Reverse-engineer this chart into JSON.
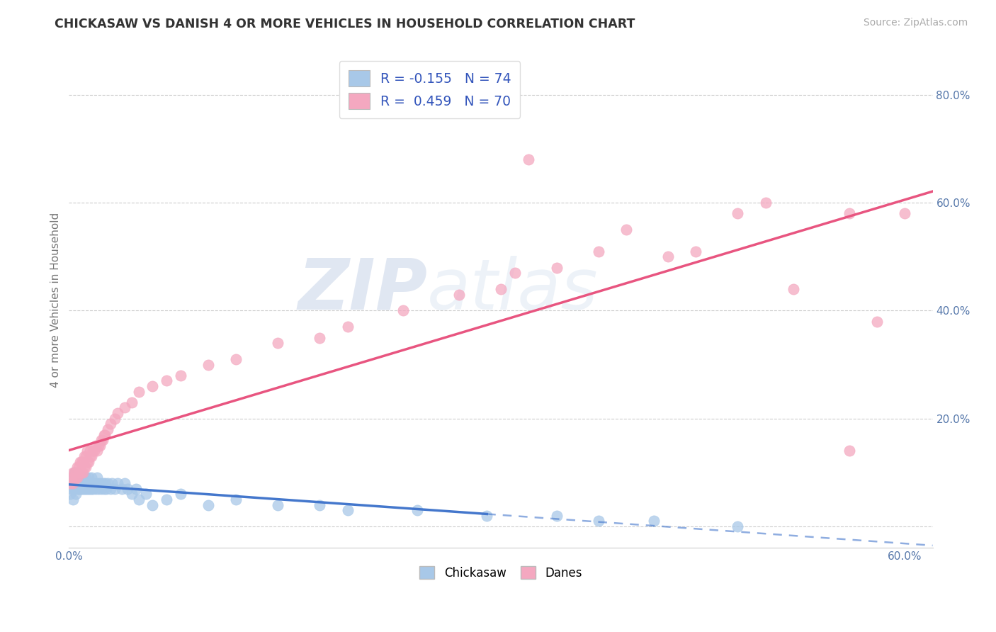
{
  "title": "CHICKASAW VS DANISH 4 OR MORE VEHICLES IN HOUSEHOLD CORRELATION CHART",
  "source": "Source: ZipAtlas.com",
  "ylabel": "4 or more Vehicles in Household",
  "xlim": [
    0.0,
    0.62
  ],
  "ylim": [
    -0.04,
    0.88
  ],
  "color_chickasaw": "#a8c8e8",
  "color_danes": "#f4a8c0",
  "line_color_chickasaw": "#4477cc",
  "line_color_danes": "#e85580",
  "watermark_zip": "ZIP",
  "watermark_atlas": "atlas",
  "background_color": "#ffffff",
  "r_chick": -0.155,
  "n_chick": 74,
  "r_danes": 0.459,
  "n_danes": 70,
  "chickasaw_x": [
    0.001,
    0.002,
    0.003,
    0.003,
    0.003,
    0.004,
    0.004,
    0.004,
    0.005,
    0.005,
    0.006,
    0.006,
    0.006,
    0.007,
    0.007,
    0.007,
    0.008,
    0.008,
    0.008,
    0.009,
    0.009,
    0.01,
    0.01,
    0.01,
    0.011,
    0.011,
    0.012,
    0.012,
    0.013,
    0.013,
    0.014,
    0.014,
    0.015,
    0.015,
    0.016,
    0.016,
    0.017,
    0.018,
    0.019,
    0.02,
    0.02,
    0.021,
    0.022,
    0.023,
    0.024,
    0.025,
    0.026,
    0.027,
    0.028,
    0.03,
    0.031,
    0.033,
    0.035,
    0.038,
    0.04,
    0.042,
    0.045,
    0.048,
    0.05,
    0.055,
    0.06,
    0.07,
    0.08,
    0.1,
    0.12,
    0.15,
    0.18,
    0.2,
    0.25,
    0.3,
    0.35,
    0.38,
    0.42,
    0.48
  ],
  "chickasaw_y": [
    0.06,
    0.07,
    0.08,
    0.05,
    0.09,
    0.07,
    0.08,
    0.1,
    0.06,
    0.09,
    0.07,
    0.08,
    0.1,
    0.07,
    0.08,
    0.09,
    0.07,
    0.08,
    0.09,
    0.07,
    0.08,
    0.07,
    0.08,
    0.09,
    0.07,
    0.08,
    0.07,
    0.09,
    0.07,
    0.08,
    0.07,
    0.09,
    0.07,
    0.08,
    0.07,
    0.09,
    0.07,
    0.08,
    0.07,
    0.08,
    0.09,
    0.07,
    0.08,
    0.07,
    0.08,
    0.07,
    0.08,
    0.07,
    0.08,
    0.07,
    0.08,
    0.07,
    0.08,
    0.07,
    0.08,
    0.07,
    0.06,
    0.07,
    0.05,
    0.06,
    0.04,
    0.05,
    0.06,
    0.04,
    0.05,
    0.04,
    0.04,
    0.03,
    0.03,
    0.02,
    0.02,
    0.01,
    0.01,
    0.0
  ],
  "danes_x": [
    0.001,
    0.002,
    0.003,
    0.003,
    0.004,
    0.004,
    0.005,
    0.005,
    0.006,
    0.006,
    0.007,
    0.007,
    0.008,
    0.008,
    0.009,
    0.009,
    0.01,
    0.01,
    0.011,
    0.011,
    0.012,
    0.012,
    0.013,
    0.013,
    0.014,
    0.015,
    0.015,
    0.016,
    0.017,
    0.018,
    0.019,
    0.02,
    0.021,
    0.022,
    0.023,
    0.024,
    0.025,
    0.026,
    0.028,
    0.03,
    0.033,
    0.035,
    0.04,
    0.045,
    0.05,
    0.06,
    0.07,
    0.08,
    0.1,
    0.12,
    0.15,
    0.18,
    0.2,
    0.24,
    0.28,
    0.31,
    0.32,
    0.33,
    0.35,
    0.38,
    0.4,
    0.43,
    0.45,
    0.48,
    0.5,
    0.52,
    0.56,
    0.58,
    0.6,
    0.56
  ],
  "danes_y": [
    0.08,
    0.09,
    0.08,
    0.1,
    0.09,
    0.1,
    0.09,
    0.1,
    0.09,
    0.11,
    0.1,
    0.11,
    0.1,
    0.12,
    0.1,
    0.12,
    0.1,
    0.12,
    0.11,
    0.13,
    0.11,
    0.13,
    0.12,
    0.14,
    0.12,
    0.13,
    0.14,
    0.13,
    0.14,
    0.14,
    0.15,
    0.14,
    0.15,
    0.15,
    0.16,
    0.16,
    0.17,
    0.17,
    0.18,
    0.19,
    0.2,
    0.21,
    0.22,
    0.23,
    0.25,
    0.26,
    0.27,
    0.28,
    0.3,
    0.31,
    0.34,
    0.35,
    0.37,
    0.4,
    0.43,
    0.44,
    0.47,
    0.68,
    0.48,
    0.51,
    0.55,
    0.5,
    0.51,
    0.58,
    0.6,
    0.44,
    0.58,
    0.38,
    0.58,
    0.14
  ]
}
